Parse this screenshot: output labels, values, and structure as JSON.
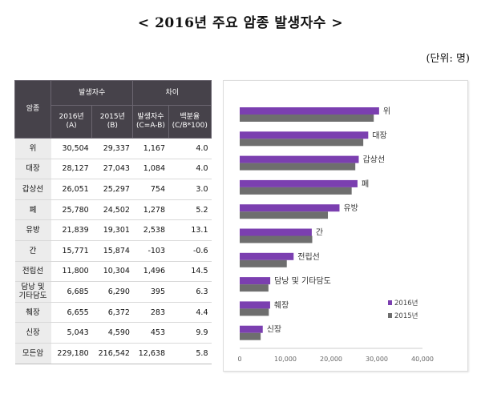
{
  "title": "< 2016년 주요 암종 발생자수 >",
  "unit": "(단위: 명)",
  "table": {
    "header_corner": "암종",
    "group_occurrence": "발생자수",
    "group_diff": "차이",
    "col_2016": [
      "2016년",
      "(A)"
    ],
    "col_2015": [
      "2015년",
      "(B)"
    ],
    "col_diff": [
      "발생자수",
      "(C=A-B)"
    ],
    "col_pct": [
      "백분율",
      "(C/B*100)"
    ],
    "rows": [
      {
        "name": [
          "위"
        ],
        "v2016": "30,504",
        "v2015": "29,337",
        "diff": "1,167",
        "pct": "4.0"
      },
      {
        "name": [
          "대장"
        ],
        "v2016": "28,127",
        "v2015": "27,043",
        "diff": "1,084",
        "pct": "4.0"
      },
      {
        "name": [
          "갑상선"
        ],
        "v2016": "26,051",
        "v2015": "25,297",
        "diff": "754",
        "pct": "3.0"
      },
      {
        "name": [
          "폐"
        ],
        "v2016": "25,780",
        "v2015": "24,502",
        "diff": "1,278",
        "pct": "5.2"
      },
      {
        "name": [
          "유방"
        ],
        "v2016": "21,839",
        "v2015": "19,301",
        "diff": "2,538",
        "pct": "13.1"
      },
      {
        "name": [
          "간"
        ],
        "v2016": "15,771",
        "v2015": "15,874",
        "diff": "-103",
        "pct": "-0.6"
      },
      {
        "name": [
          "전립선"
        ],
        "v2016": "11,800",
        "v2015": "10,304",
        "diff": "1,496",
        "pct": "14.5"
      },
      {
        "name": [
          "담낭 및",
          "기타담도"
        ],
        "v2016": "6,685",
        "v2015": "6,290",
        "diff": "395",
        "pct": "6.3"
      },
      {
        "name": [
          "췌장"
        ],
        "v2016": "6,655",
        "v2015": "6,372",
        "diff": "283",
        "pct": "4.4"
      },
      {
        "name": [
          "신장"
        ],
        "v2016": "5,043",
        "v2015": "4,590",
        "diff": "453",
        "pct": "9.9"
      },
      {
        "name": [
          "모든암"
        ],
        "v2016": "229,180",
        "v2015": "216,542",
        "diff": "12,638",
        "pct": "5.8",
        "total": true
      }
    ]
  },
  "chart_data": {
    "type": "bar",
    "orientation": "horizontal",
    "categories": [
      "위",
      "대장",
      "갑상선",
      "폐",
      "유방",
      "간",
      "전립선",
      "담낭 및 기타담도",
      "췌장",
      "신장"
    ],
    "series": [
      {
        "name": "2016년",
        "values": [
          30504,
          28127,
          26051,
          25780,
          21839,
          15771,
          11800,
          6685,
          6655,
          5043
        ],
        "color": "#7b3fb0"
      },
      {
        "name": "2015년",
        "values": [
          29337,
          27043,
          25297,
          24502,
          19301,
          15874,
          10304,
          6290,
          6372,
          4590
        ],
        "color": "#6e6e6e"
      }
    ],
    "xlim": [
      0,
      40000
    ],
    "xticks": [
      "0",
      "10,000",
      "20,000",
      "30,000",
      "40,000"
    ],
    "legend": "bottom-right",
    "grid": false
  }
}
